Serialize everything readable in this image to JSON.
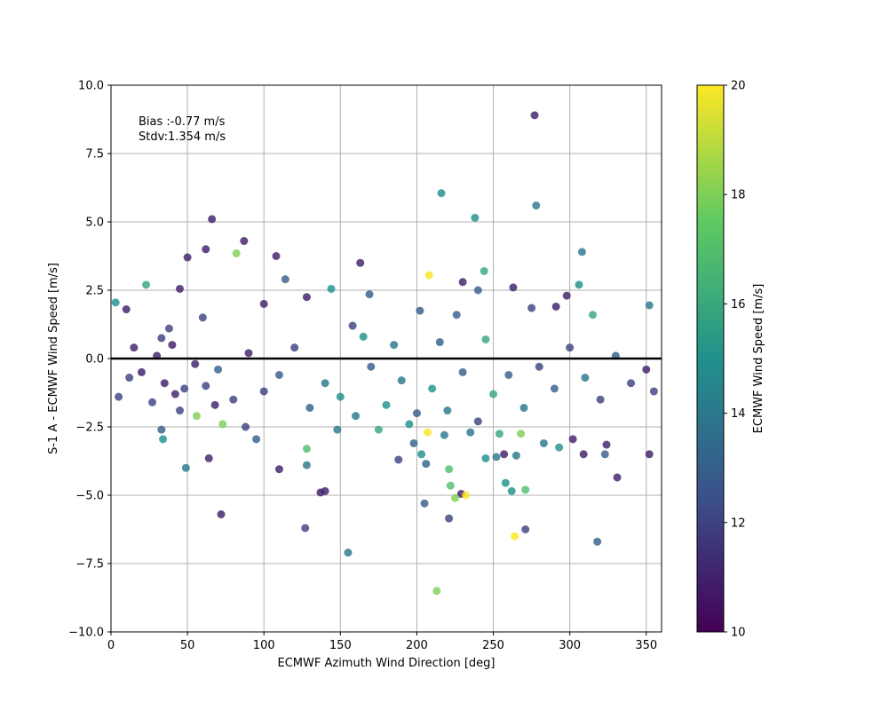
{
  "chart_data": {
    "type": "scatter",
    "xlabel": "ECMWF Azimuth Wind Direction [deg]",
    "ylabel": "S-1 A - ECMWF Wind Speed [m/s]",
    "xlim": [
      0,
      360
    ],
    "ylim": [
      -10,
      10
    ],
    "x_ticks": [
      "0",
      "50",
      "100",
      "150",
      "200",
      "250",
      "300",
      "350"
    ],
    "y_ticks": [
      "−10.0",
      "−7.5",
      "−5.0",
      "−2.5",
      "0.0",
      "2.5",
      "5.0",
      "7.5",
      "10.0"
    ],
    "grid": true,
    "reference_line_y": 0,
    "annotations": [
      "Bias :-0.77 m/s",
      "Stdv:1.354 m/s"
    ],
    "colorbar": {
      "label": "ECMWF Wind Speed [m/s]",
      "range": [
        10,
        20
      ],
      "ticks": [
        "10",
        "12",
        "14",
        "16",
        "18",
        "20"
      ],
      "colormap": "viridis"
    },
    "points": [
      [
        277,
        8.9,
        11
      ],
      [
        216,
        6.05,
        15
      ],
      [
        278,
        5.6,
        14
      ],
      [
        238,
        5.15,
        15
      ],
      [
        66,
        5.1,
        11
      ],
      [
        62,
        4.0,
        11
      ],
      [
        87,
        4.3,
        11
      ],
      [
        82,
        3.85,
        18
      ],
      [
        50,
        3.7,
        11
      ],
      [
        108,
        3.75,
        11
      ],
      [
        163,
        3.5,
        11
      ],
      [
        308,
        3.9,
        14
      ],
      [
        208,
        3.05,
        20
      ],
      [
        244,
        3.2,
        16
      ],
      [
        23,
        2.7,
        16
      ],
      [
        114,
        2.9,
        13
      ],
      [
        230,
        2.8,
        11
      ],
      [
        263,
        2.6,
        11
      ],
      [
        306,
        2.7,
        15
      ],
      [
        3,
        2.05,
        15
      ],
      [
        45,
        2.55,
        11
      ],
      [
        128,
        2.25,
        11
      ],
      [
        144,
        2.55,
        15
      ],
      [
        169,
        2.35,
        13
      ],
      [
        240,
        2.5,
        13
      ],
      [
        298,
        2.3,
        11
      ],
      [
        352,
        1.95,
        14
      ],
      [
        275,
        1.85,
        12
      ],
      [
        291,
        1.9,
        11
      ],
      [
        100,
        2.0,
        11
      ],
      [
        10,
        1.8,
        11
      ],
      [
        60,
        1.5,
        12
      ],
      [
        202,
        1.75,
        13
      ],
      [
        226,
        1.6,
        13
      ],
      [
        315,
        1.6,
        16
      ],
      [
        283,
        -3.1,
        14
      ],
      [
        302,
        -2.95,
        11
      ],
      [
        293,
        -3.25,
        15
      ],
      [
        324,
        -3.15,
        11
      ],
      [
        309,
        -3.5,
        11
      ],
      [
        323,
        -3.5,
        13
      ],
      [
        352,
        -3.5,
        11
      ],
      [
        265,
        -3.55,
        14
      ],
      [
        257,
        -3.5,
        11
      ],
      [
        245,
        -3.65,
        15
      ],
      [
        252,
        -3.6,
        14
      ],
      [
        206,
        -3.85,
        13
      ],
      [
        203,
        -3.5,
        15
      ],
      [
        188,
        -3.7,
        12
      ],
      [
        128,
        -3.9,
        14
      ],
      [
        110,
        -4.05,
        11
      ],
      [
        49,
        -4.0,
        14
      ],
      [
        64,
        -3.65,
        11
      ],
      [
        221,
        -4.05,
        17
      ],
      [
        331,
        -4.35,
        11
      ],
      [
        137,
        -4.9,
        11
      ],
      [
        140,
        -4.85,
        11
      ],
      [
        258,
        -4.55,
        15
      ],
      [
        262,
        -4.85,
        15
      ],
      [
        271,
        -4.8,
        17
      ],
      [
        222,
        -4.65,
        17
      ],
      [
        229,
        -4.95,
        11
      ],
      [
        232,
        -5.0,
        20
      ],
      [
        225,
        -5.1,
        18
      ],
      [
        205,
        -5.3,
        13
      ],
      [
        72,
        -5.7,
        11
      ],
      [
        221,
        -5.85,
        12
      ],
      [
        127,
        -6.2,
        12
      ],
      [
        264,
        -6.5,
        20
      ],
      [
        271,
        -6.25,
        12
      ],
      [
        318,
        -6.7,
        13
      ],
      [
        155,
        -7.1,
        14
      ],
      [
        213,
        -8.5,
        18
      ],
      [
        34,
        -2.95,
        15
      ],
      [
        56,
        -2.1,
        18
      ],
      [
        73,
        -2.4,
        18
      ],
      [
        95,
        -2.95,
        13
      ],
      [
        128,
        -3.3,
        17
      ],
      [
        207,
        -2.7,
        20
      ],
      [
        254,
        -2.75,
        16
      ],
      [
        268,
        -2.75,
        18
      ],
      [
        33,
        -2.6,
        13
      ],
      [
        33,
        0.75,
        12
      ],
      [
        40,
        0.5,
        11
      ],
      [
        35,
        -0.9,
        11
      ],
      [
        48,
        -1.1,
        12
      ],
      [
        20,
        -0.5,
        11
      ],
      [
        27,
        -1.6,
        12
      ],
      [
        42,
        -1.3,
        11
      ],
      [
        55,
        -0.2,
        11
      ],
      [
        38,
        1.1,
        12
      ],
      [
        30,
        0.1,
        11
      ],
      [
        45,
        -1.9,
        12
      ],
      [
        62,
        -1.0,
        12
      ],
      [
        70,
        -0.4,
        13
      ],
      [
        80,
        -1.5,
        12
      ],
      [
        90,
        0.2,
        11
      ],
      [
        100,
        -1.2,
        12
      ],
      [
        110,
        -0.6,
        13
      ],
      [
        120,
        0.4,
        12
      ],
      [
        130,
        -1.8,
        13
      ],
      [
        140,
        -0.9,
        14
      ],
      [
        150,
        -1.4,
        15
      ],
      [
        160,
        -2.1,
        14
      ],
      [
        170,
        -0.3,
        13
      ],
      [
        180,
        -1.7,
        15
      ],
      [
        190,
        -0.8,
        14
      ],
      [
        200,
        -2.0,
        13
      ],
      [
        210,
        -1.1,
        15
      ],
      [
        220,
        -1.9,
        14
      ],
      [
        230,
        -0.5,
        13
      ],
      [
        240,
        -2.3,
        12
      ],
      [
        250,
        -1.3,
        16
      ],
      [
        260,
        -0.6,
        13
      ],
      [
        270,
        -1.8,
        14
      ],
      [
        280,
        -0.3,
        12
      ],
      [
        290,
        -1.1,
        13
      ],
      [
        300,
        0.4,
        12
      ],
      [
        310,
        -0.7,
        14
      ],
      [
        320,
        -1.5,
        12
      ],
      [
        330,
        0.1,
        13
      ],
      [
        340,
        -0.9,
        12
      ],
      [
        350,
        -0.4,
        11
      ],
      [
        355,
        -1.2,
        12
      ],
      [
        12,
        -0.7,
        12
      ],
      [
        15,
        0.4,
        11
      ],
      [
        5,
        -1.4,
        12
      ],
      [
        165,
        0.8,
        15
      ],
      [
        175,
        -2.6,
        16
      ],
      [
        185,
        0.5,
        14
      ],
      [
        195,
        -2.4,
        15
      ],
      [
        215,
        0.6,
        13
      ],
      [
        235,
        -2.7,
        14
      ],
      [
        245,
        0.7,
        16
      ],
      [
        148,
        -2.6,
        14
      ],
      [
        158,
        1.2,
        12
      ],
      [
        198,
        -3.1,
        13
      ],
      [
        218,
        -2.8,
        14
      ],
      [
        88,
        -2.5,
        12
      ],
      [
        68,
        -1.7,
        11
      ]
    ]
  }
}
